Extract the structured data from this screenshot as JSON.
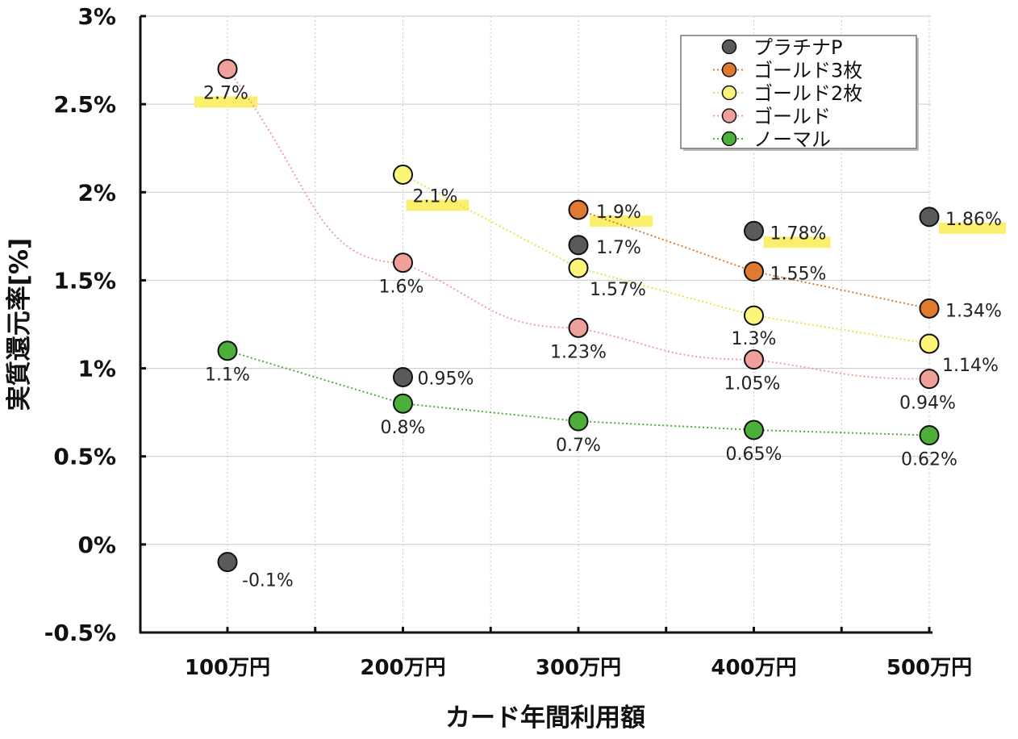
{
  "chart_data": {
    "type": "scatter",
    "xlabel": "カード年間利用額",
    "ylabel": "実質還元率[%]",
    "categories": [
      "100万円",
      "200万円",
      "300万円",
      "400万円",
      "500万円"
    ],
    "y_ticks": [
      "3%",
      "2.5%",
      "2%",
      "1.5%",
      "1%",
      "0.5%",
      "0%",
      "-0.5%"
    ],
    "ylim": [
      -0.5,
      3
    ],
    "grid": true,
    "legend_position": "top-right",
    "series": [
      {
        "name": "プラチナP",
        "color": "#5a5a5a",
        "connect": false,
        "values": [
          -0.1,
          0.95,
          1.7,
          1.78,
          1.86
        ],
        "labels": [
          "-0.1%",
          "0.95%",
          "1.7%",
          "1.78%",
          "1.86%"
        ]
      },
      {
        "name": "ゴールド3枚",
        "color": "#e07a2e",
        "connect": true,
        "values": [
          null,
          null,
          1.9,
          1.55,
          1.34
        ],
        "labels": [
          null,
          null,
          "1.9%",
          "1.55%",
          "1.34%"
        ]
      },
      {
        "name": "ゴールド2枚",
        "color": "#fdf57a",
        "connect": true,
        "values": [
          null,
          2.1,
          1.57,
          1.3,
          1.14
        ],
        "labels": [
          null,
          "2.1%",
          "1.57%",
          "1.3%",
          "1.14%"
        ]
      },
      {
        "name": "ゴールド",
        "color": "#f0a09a",
        "connect": true,
        "values": [
          2.7,
          1.6,
          1.23,
          1.05,
          0.94
        ],
        "labels": [
          "2.7%",
          "1.6%",
          "1.23%",
          "1.05%",
          "0.94%"
        ]
      },
      {
        "name": "ノーマル",
        "color": "#4caf3a",
        "connect": true,
        "values": [
          1.1,
          0.8,
          0.7,
          0.65,
          0.62
        ],
        "labels": [
          "1.1%",
          "0.8%",
          "0.7%",
          "0.65%",
          "0.62%"
        ]
      }
    ],
    "highlight_color": "#fbef6e",
    "highlighted_labels": [
      "2.7%",
      "2.1%",
      "1.9%",
      "1.78%",
      "1.86%"
    ]
  }
}
